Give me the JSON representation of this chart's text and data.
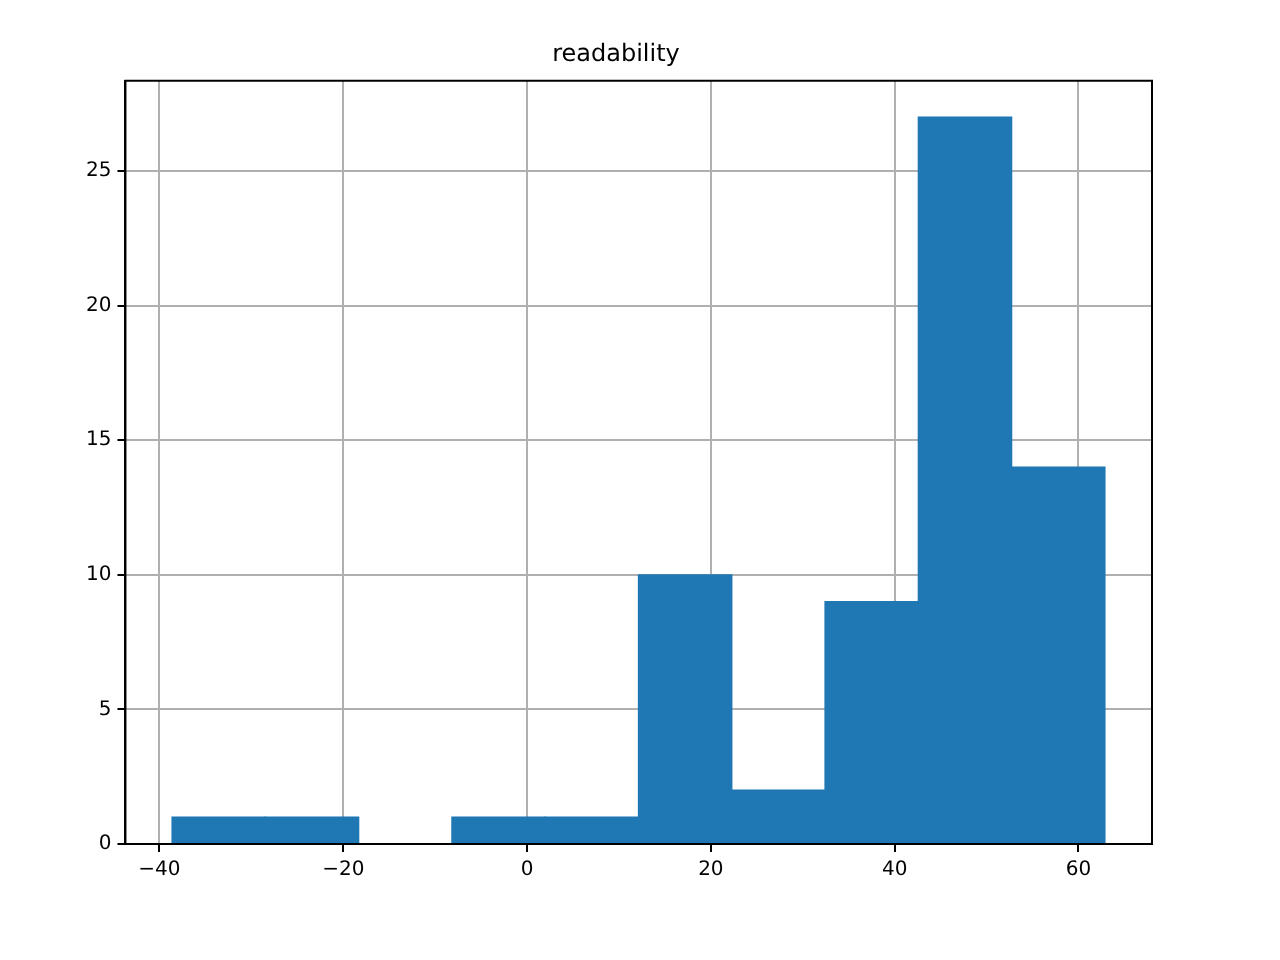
{
  "chart_data": {
    "type": "histogram",
    "title": "readability",
    "bins": [
      -38.6,
      -28.5,
      -18.3,
      -8.2,
      2.0,
      12.1,
      22.3,
      32.4,
      42.6,
      52.7,
      62.9
    ],
    "values": [
      1,
      1,
      0,
      1,
      1,
      10,
      2,
      9,
      27,
      14
    ],
    "color": "#1f77b4",
    "xlim": [
      -43.7,
      68.0
    ],
    "xticks": [
      -40,
      -20,
      0,
      20,
      40,
      60
    ],
    "ylim": [
      0,
      28.35
    ],
    "yticks": [
      0,
      5,
      10,
      15,
      20,
      25
    ],
    "grid": true
  }
}
